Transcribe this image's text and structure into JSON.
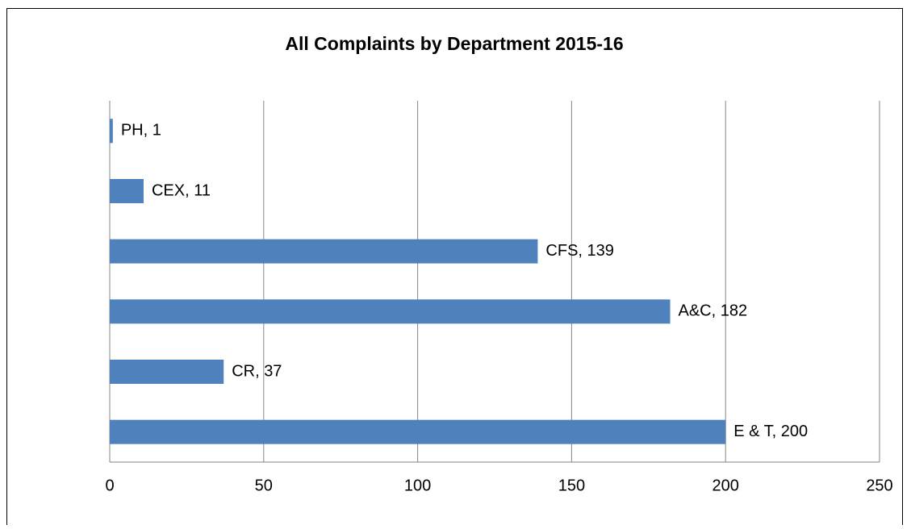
{
  "chart_data": {
    "type": "bar",
    "orientation": "horizontal",
    "title": "All Complaints by Department 2015-16",
    "values": [
      1,
      11,
      139,
      182,
      37,
      200
    ],
    "value_labels": [
      "PH, 1",
      "CEX, 11",
      "CFS, 139",
      "A&C, 182",
      "CR, 37",
      "E & T, 200"
    ],
    "color": "#4f81bd",
    "xlim": [
      0,
      250
    ],
    "xticks": [
      0,
      50,
      100,
      150,
      200,
      250
    ],
    "grid": true
  }
}
